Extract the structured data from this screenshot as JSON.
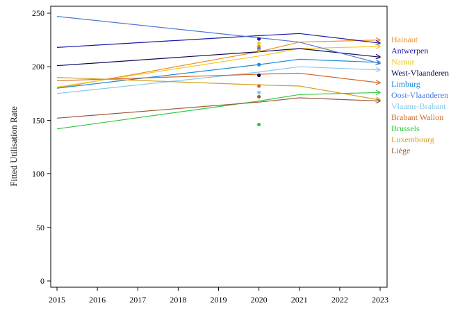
{
  "chart_data": {
    "type": "line",
    "title": "",
    "xlabel": "",
    "ylabel": "Fitted Utilisation Rate",
    "xlim": [
      2015,
      2023
    ],
    "ylim": [
      0,
      250
    ],
    "x_ticks": [
      2015,
      2016,
      2017,
      2018,
      2019,
      2020,
      2021,
      2022,
      2023
    ],
    "y_ticks": [
      0,
      50,
      100,
      150,
      200,
      250
    ],
    "grid": false,
    "legend_position": "right",
    "x": [
      2015,
      2020,
      2021,
      2023
    ],
    "series": [
      {
        "name": "Hainaut",
        "color": "#f28c1e",
        "values": [
          180,
          214,
          223,
          225
        ],
        "point_2020": 219
      },
      {
        "name": "Antwerpen",
        "color": "#1a1aa6",
        "values": [
          218,
          229,
          231,
          222
        ],
        "point_2020": 226
      },
      {
        "name": "Namur",
        "color": "#f2c81e",
        "values": [
          181,
          210,
          217,
          219
        ],
        "point_2020": 222
      },
      {
        "name": "West-Vlaanderen",
        "color": "#0a0a5a",
        "values": [
          201,
          214,
          217,
          209
        ],
        "point_2020": 192
      },
      {
        "name": "Limburg",
        "color": "#1e8cdc",
        "values": [
          180,
          202,
          207,
          204
        ],
        "point_2020": 202
      },
      {
        "name": "Oost-Vlaanderen",
        "color": "#4a7ad6",
        "values": [
          247,
          227,
          223,
          203
        ],
        "point_2020": 217
      },
      {
        "name": "Vlaams-Brabant",
        "color": "#88c8ee",
        "values": [
          175,
          195,
          200,
          197
        ],
        "point_2020": 176
      },
      {
        "name": "Brabant Wallon",
        "color": "#d2692a",
        "values": [
          187,
          193,
          194,
          185
        ],
        "point_2020": 182
      },
      {
        "name": "Brussels",
        "color": "#2ec840",
        "values": [
          142,
          168,
          174,
          176
        ],
        "point_2020": 146
      },
      {
        "name": "Luxembourg",
        "color": "#d4a020",
        "values": [
          190,
          183,
          182,
          169
        ],
        "point_2020": 215
      },
      {
        "name": "Liège",
        "color": "#9a5a34",
        "values": [
          152,
          167,
          171,
          168
        ],
        "point_2020": 172
      }
    ]
  }
}
